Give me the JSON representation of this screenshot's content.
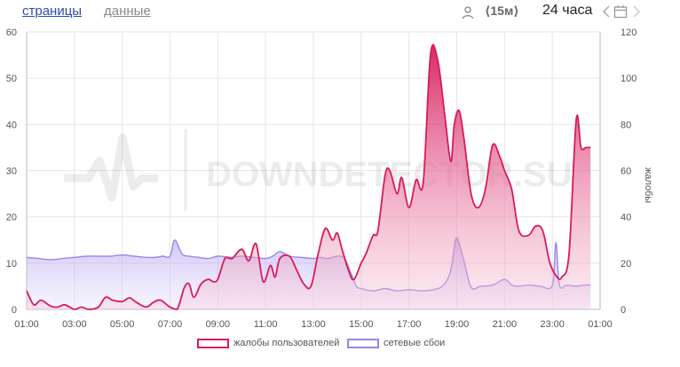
{
  "tabs": [
    {
      "label": "страницы",
      "active": true
    },
    {
      "label": "данные",
      "active": false
    }
  ],
  "controls": {
    "interval": "⟨15м⟩",
    "range": "24 часа",
    "user_icon": "user-icon",
    "calendar_icon": "calendar-icon"
  },
  "watermark": "DOWNDETECTOR.SU",
  "colors": {
    "reports": "#d81b5e",
    "outages": "#9b85e8"
  },
  "chart_data": {
    "type": "area",
    "x_ticks": [
      "01:00",
      "03:00",
      "05:00",
      "07:00",
      "09:00",
      "11:00",
      "13:00",
      "15:00",
      "17:00",
      "19:00",
      "21:00",
      "23:00",
      "01:00"
    ],
    "x_range_hours": [
      1,
      25
    ],
    "y_left": {
      "ticks": [
        0,
        10,
        20,
        30,
        40,
        50,
        60
      ],
      "range": [
        0,
        60
      ],
      "label": ""
    },
    "y_right": {
      "ticks": [
        0,
        20,
        40,
        60,
        80,
        100,
        120
      ],
      "range": [
        0,
        120
      ],
      "label": "жалобы"
    },
    "grid": true,
    "legend_position": "bottom",
    "series": [
      {
        "name": "жалобы пользователей",
        "axis": "left",
        "color": "#d81b5e",
        "x": [
          1,
          1.3,
          1.6,
          2,
          2.3,
          2.6,
          3,
          3.3,
          3.6,
          4,
          4.3,
          4.6,
          5,
          5.3,
          5.6,
          6,
          6.3,
          6.6,
          7,
          7.3,
          7.6,
          7.8,
          8,
          8.3,
          8.6,
          8.8,
          9,
          9.3,
          9.6,
          10,
          10.3,
          10.6,
          10.9,
          11.2,
          11.4,
          11.6,
          12,
          12.3,
          12.6,
          12.9,
          13.2,
          13.5,
          13.8,
          14,
          14.2,
          14.5,
          14.7,
          15,
          15.2,
          15.5,
          15.7,
          16,
          16.2,
          16.5,
          16.7,
          17,
          17.3,
          17.6,
          17.9,
          18.2,
          18.5,
          18.75,
          18.9,
          19.1,
          19.3,
          19.6,
          19.9,
          20.2,
          20.5,
          20.8,
          21,
          21.3,
          21.6,
          22,
          22.3,
          22.6,
          22.9,
          23.2,
          23.4,
          23.7,
          24,
          24.2,
          24.4,
          24.6
        ],
        "values": [
          4,
          1,
          2,
          0.7,
          0.5,
          1,
          0,
          0.5,
          0,
          0.5,
          2.6,
          2,
          1.7,
          2.5,
          1.5,
          0.5,
          1.5,
          2,
          0.5,
          0,
          4.7,
          5.5,
          2.6,
          5.5,
          6.5,
          6,
          6.5,
          11,
          11,
          13,
          10.5,
          14.2,
          6,
          9.5,
          7,
          11,
          11.5,
          8.5,
          5.5,
          5,
          12,
          17.5,
          15,
          16.5,
          13,
          8,
          6.5,
          10,
          12,
          16,
          17,
          29,
          30,
          25,
          28.5,
          22,
          28,
          27.5,
          55,
          54,
          42,
          32,
          40,
          43,
          37,
          25,
          22,
          26,
          35.5,
          33,
          30,
          26,
          17,
          16,
          18,
          17,
          10,
          7,
          7,
          12,
          41,
          35,
          35,
          35
        ]
      },
      {
        "name": "сетевые сбои",
        "axis": "right",
        "color": "#9b85e8",
        "x": [
          1,
          1.5,
          2,
          2.5,
          3,
          3.5,
          4,
          4.5,
          5,
          5.5,
          6,
          6.4,
          6.7,
          7,
          7.2,
          7.5,
          7.8,
          8.2,
          8.6,
          9,
          9.5,
          10,
          10.5,
          11,
          11.3,
          11.6,
          12,
          12.5,
          13,
          13.3,
          13.6,
          14,
          14.3,
          14.6,
          14.8,
          15,
          15.5,
          16,
          16.5,
          17,
          17.5,
          18,
          18.4,
          18.7,
          18.85,
          19,
          19.3,
          19.6,
          20,
          20.5,
          21,
          21.3,
          21.6,
          22,
          22.5,
          23,
          23.15,
          23.3,
          23.6,
          24,
          24.3,
          24.6
        ],
        "values": [
          22.5,
          22,
          21.5,
          22,
          22.5,
          23,
          23,
          23,
          23.5,
          23,
          22.5,
          22.5,
          23,
          23,
          30,
          24,
          23,
          22.5,
          22,
          23,
          22.5,
          23,
          22.5,
          22,
          23,
          25,
          23,
          22.5,
          22,
          22.5,
          22,
          23,
          22,
          15,
          10,
          9,
          8,
          9,
          8,
          8.5,
          8,
          8.5,
          10,
          15,
          23,
          31,
          21,
          9.5,
          10,
          10.5,
          13,
          10.5,
          10,
          10.5,
          10,
          10.5,
          29,
          10.5,
          10.5,
          10,
          10.5,
          10.5
        ]
      }
    ]
  },
  "legend": [
    {
      "label": "жалобы пользователей"
    },
    {
      "label": "сетевые сбои"
    }
  ]
}
